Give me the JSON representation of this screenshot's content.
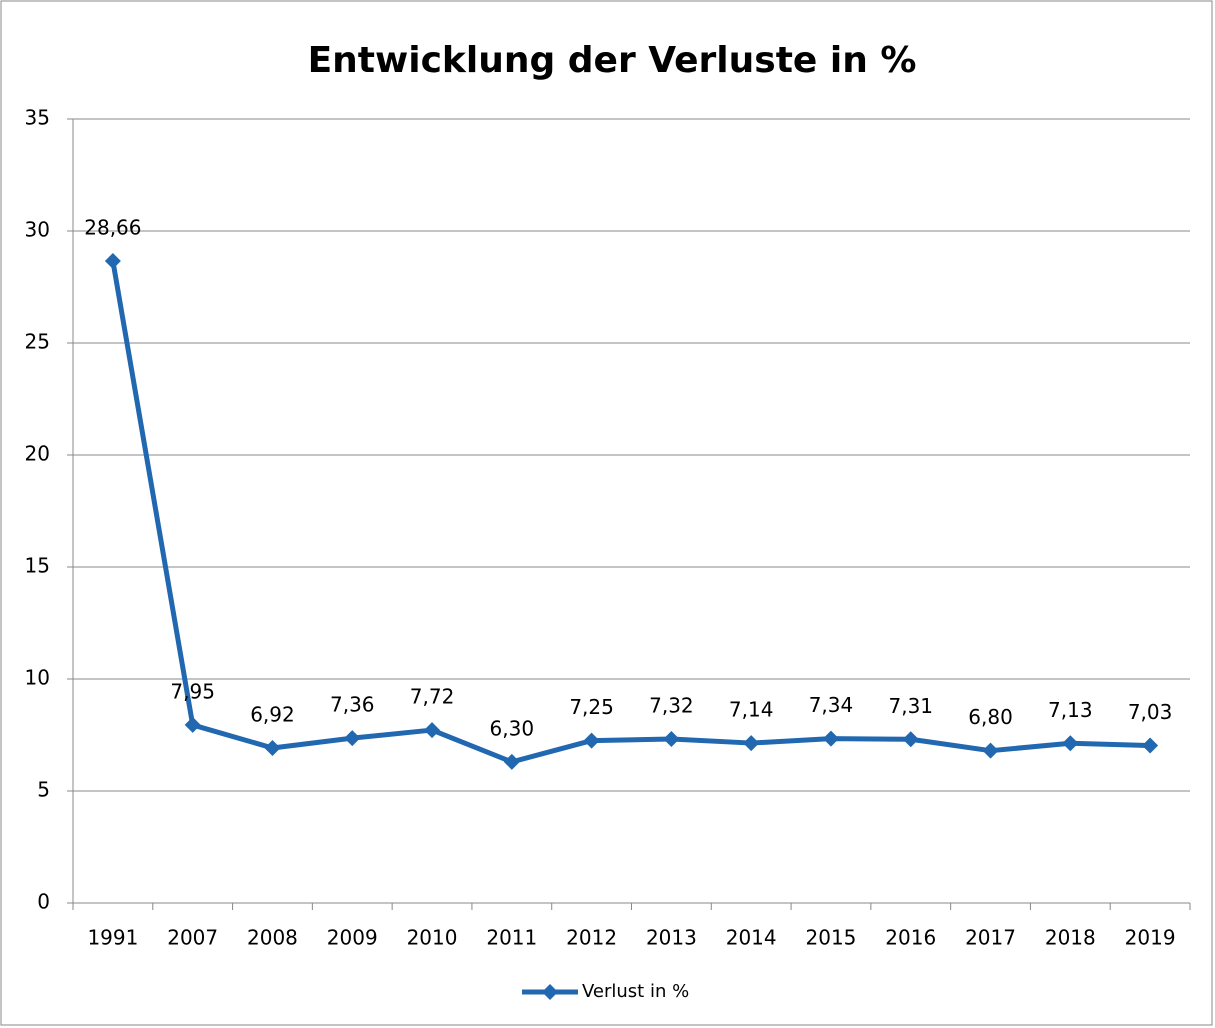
{
  "chart_data": {
    "type": "line",
    "title": "Entwicklung der Verluste in %",
    "categories": [
      "1991",
      "2007",
      "2008",
      "2009",
      "2010",
      "2011",
      "2012",
      "2013",
      "2014",
      "2015",
      "2016",
      "2017",
      "2018",
      "2019"
    ],
    "series": [
      {
        "name": "Verlust in %",
        "color": "#2168b0",
        "values": [
          28.66,
          7.95,
          6.92,
          7.36,
          7.72,
          6.3,
          7.25,
          7.32,
          7.14,
          7.34,
          7.31,
          6.8,
          7.13,
          7.03
        ],
        "value_labels": [
          "28,66",
          "7,95",
          "6,92",
          "7,36",
          "7,72",
          "6,30",
          "7,25",
          "7,32",
          "7,14",
          "7,34",
          "7,31",
          "6,80",
          "7,13",
          "7,03"
        ]
      }
    ],
    "ylim": [
      0,
      35
    ],
    "yticks": [
      0,
      5,
      10,
      15,
      20,
      25,
      30,
      35
    ],
    "grid": true,
    "legend": "bottom"
  }
}
